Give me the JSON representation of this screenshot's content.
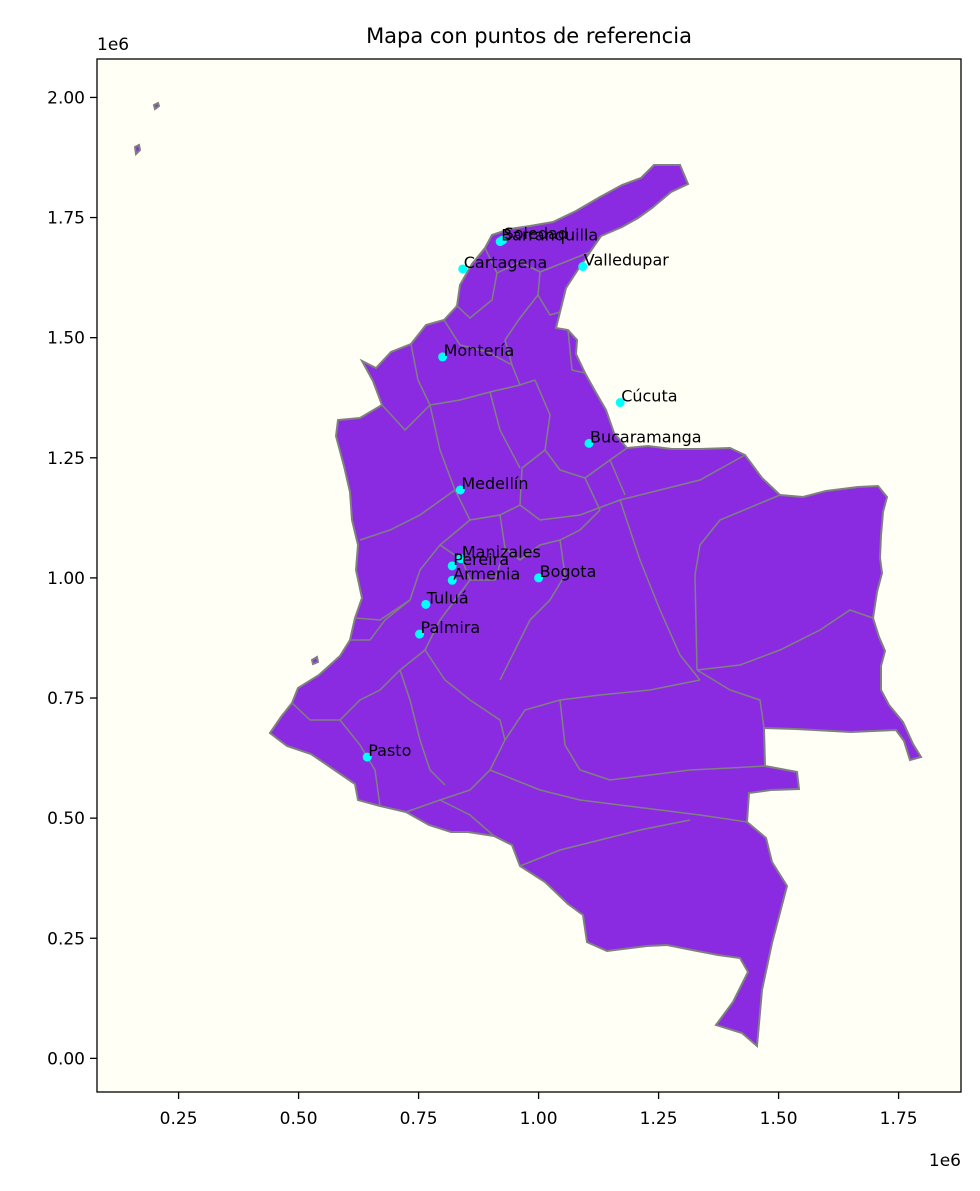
{
  "title": "Mapa con puntos de referencia",
  "colors": {
    "land": "#8a2be2",
    "borders": "#808080",
    "axes_bg": "#fffff5",
    "points": "#00ffff"
  },
  "chart_data": {
    "type": "scatter",
    "title": "Mapa con puntos de referencia",
    "xlim": [
      80000,
      1880000
    ],
    "ylim": [
      -70000,
      2080000
    ],
    "x_offset_label": "1e6",
    "y_offset_label": "1e6",
    "x_ticks": [
      {
        "v": 250000,
        "label": "0.25"
      },
      {
        "v": 500000,
        "label": "0.50"
      },
      {
        "v": 750000,
        "label": "0.75"
      },
      {
        "v": 1000000,
        "label": "1.00"
      },
      {
        "v": 1250000,
        "label": "1.25"
      },
      {
        "v": 1500000,
        "label": "1.50"
      },
      {
        "v": 1750000,
        "label": "1.75"
      }
    ],
    "y_ticks": [
      {
        "v": 0,
        "label": "0.00"
      },
      {
        "v": 250000,
        "label": "0.25"
      },
      {
        "v": 500000,
        "label": "0.50"
      },
      {
        "v": 750000,
        "label": "0.75"
      },
      {
        "v": 1000000,
        "label": "1.00"
      },
      {
        "v": 1250000,
        "label": "1.25"
      },
      {
        "v": 1500000,
        "label": "1.50"
      },
      {
        "v": 1750000,
        "label": "1.75"
      },
      {
        "v": 2000000,
        "label": "2.00"
      }
    ],
    "points": [
      {
        "name": "Barranquilla",
        "x": 920000,
        "y": 1700000
      },
      {
        "name": "Soledad",
        "x": 925000,
        "y": 1703000
      },
      {
        "name": "Cartagena",
        "x": 842000,
        "y": 1643000
      },
      {
        "name": "Valledupar",
        "x": 1092000,
        "y": 1648000
      },
      {
        "name": "Montería",
        "x": 800000,
        "y": 1460000
      },
      {
        "name": "Cúcuta",
        "x": 1170000,
        "y": 1365000
      },
      {
        "name": "Bucaramanga",
        "x": 1105000,
        "y": 1280000
      },
      {
        "name": "Medellín",
        "x": 837000,
        "y": 1183000
      },
      {
        "name": "Manizales",
        "x": 838000,
        "y": 1040000
      },
      {
        "name": "Pereira",
        "x": 820000,
        "y": 1025000
      },
      {
        "name": "Armenia",
        "x": 820000,
        "y": 995000
      },
      {
        "name": "Bogota",
        "x": 1000000,
        "y": 1000000
      },
      {
        "name": "Tuluá",
        "x": 765000,
        "y": 945000
      },
      {
        "name": "Palmira",
        "x": 752000,
        "y": 883000
      },
      {
        "name": "Pasto",
        "x": 643000,
        "y": 627000
      }
    ]
  }
}
